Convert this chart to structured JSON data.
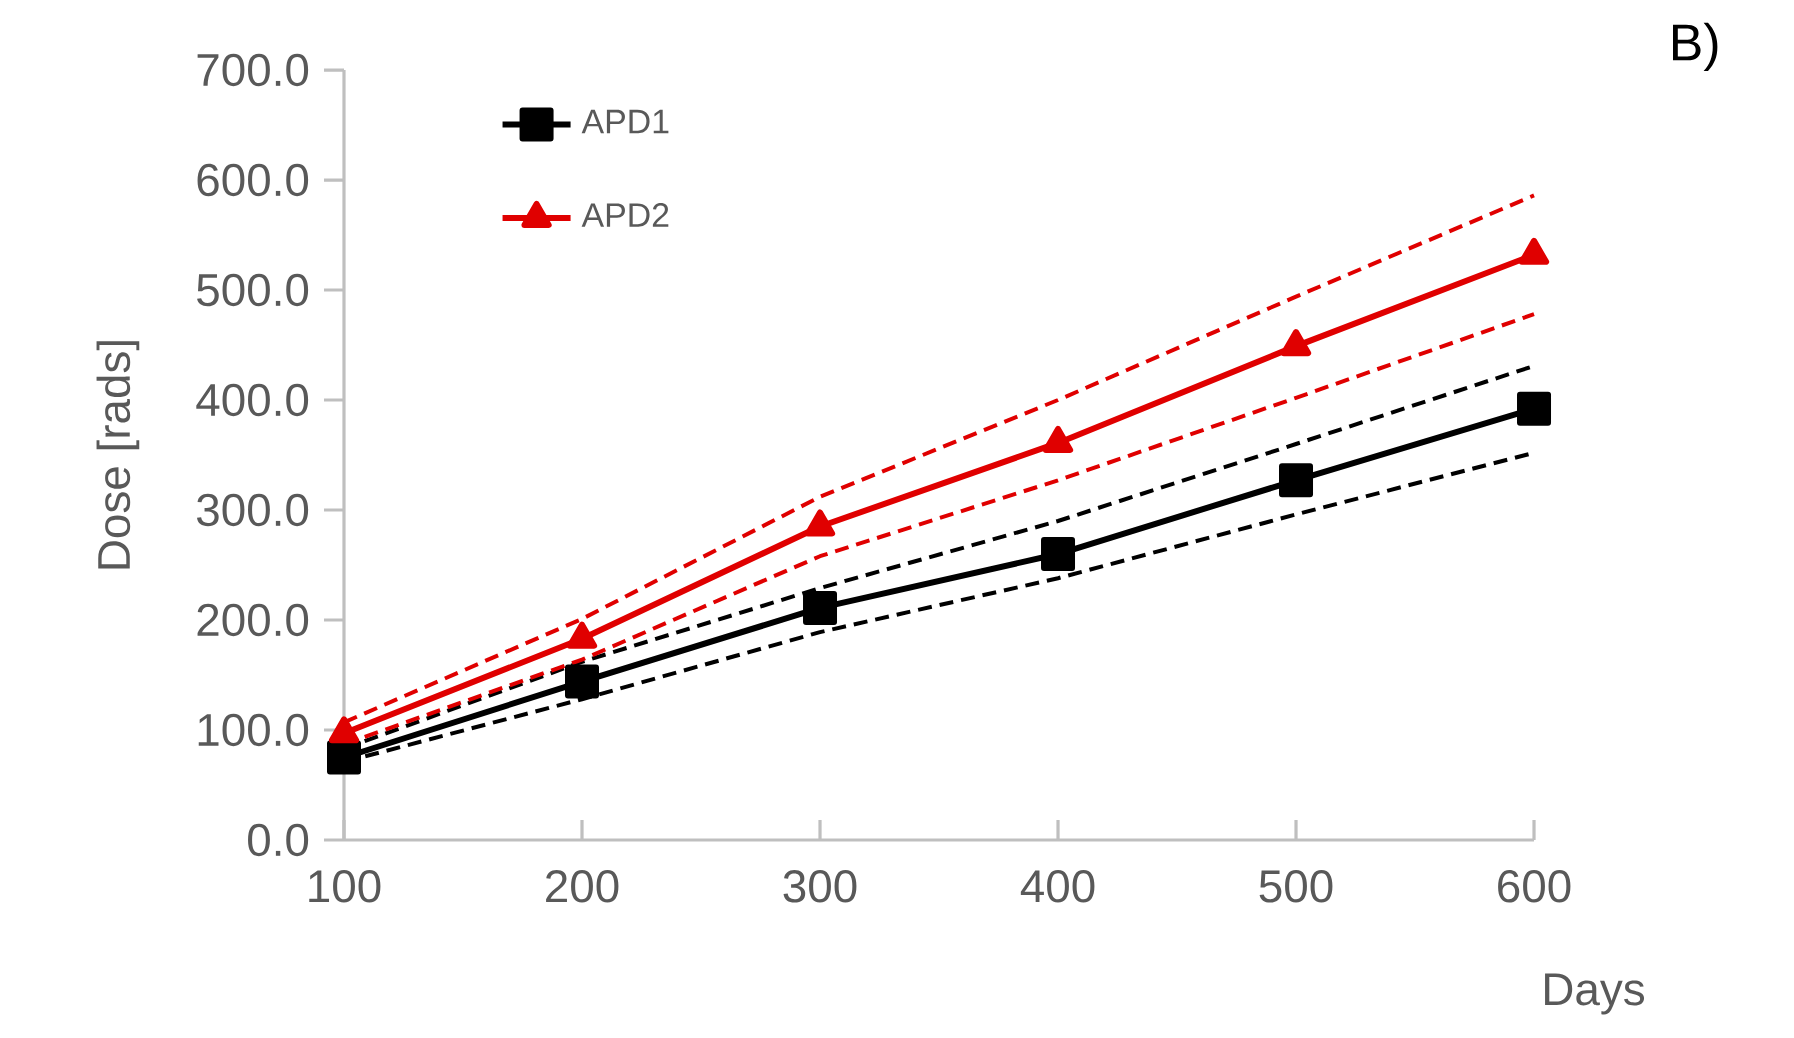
{
  "chart_data": {
    "type": "line",
    "xlabel": "Days",
    "ylabel": "Dose  [rads]",
    "annotations": [
      "B)"
    ],
    "x": [
      100,
      200,
      300,
      400,
      500,
      600
    ],
    "series": [
      {
        "name": "APD1",
        "color": "#000000",
        "marker": "square",
        "line_style": "solid",
        "values": [
          75,
          144,
          211,
          260,
          327,
          392
        ]
      },
      {
        "name": "APD2",
        "color": "#e00000",
        "marker": "triangle",
        "line_style": "solid",
        "values": [
          97,
          183,
          285,
          361,
          449,
          532
        ]
      },
      {
        "color": "#000000",
        "marker": "none",
        "line_style": "dashed",
        "values": [
          83,
          162,
          229,
          290,
          360,
          431
        ]
      },
      {
        "color": "#000000",
        "marker": "none",
        "line_style": "dashed",
        "values": [
          71,
          128,
          189,
          238,
          296,
          352
        ]
      },
      {
        "color": "#e00000",
        "marker": "none",
        "line_style": "dashed",
        "values": [
          107,
          201,
          312,
          400,
          494,
          586
        ]
      },
      {
        "color": "#e00000",
        "marker": "none",
        "line_style": "dashed",
        "values": [
          87,
          164,
          258,
          327,
          402,
          478
        ]
      }
    ],
    "xlim": [
      100,
      600
    ],
    "xticks": [
      100,
      200,
      300,
      400,
      500,
      600
    ],
    "ylim": [
      0,
      700
    ],
    "yticks": [
      {
        "value": 0,
        "label": "0.0"
      },
      {
        "value": 100,
        "label": "100.0"
      },
      {
        "value": 200,
        "label": "200.0"
      },
      {
        "value": 300,
        "label": "300.0"
      },
      {
        "value": 400,
        "label": "400.0"
      },
      {
        "value": 500,
        "label": "500.0"
      },
      {
        "value": 600,
        "label": "600.0"
      },
      {
        "value": 700,
        "label": "700.0"
      }
    ],
    "grid": false,
    "legend": "top left"
  }
}
